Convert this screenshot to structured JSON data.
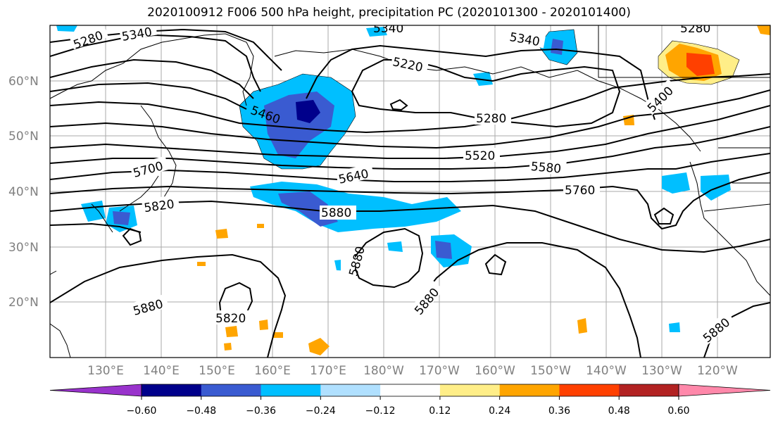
{
  "title": "2020100912 F006 500 hPa height, precipitation PC (2020101300 - 2020101400)",
  "map": {
    "lat_labels": [
      "60°N",
      "50°N",
      "40°N",
      "30°N",
      "20°N"
    ],
    "lon_labels": [
      "130°E",
      "140°E",
      "150°E",
      "160°E",
      "170°E",
      "180°W",
      "170°W",
      "160°W",
      "150°W",
      "140°W",
      "130°W",
      "120°W"
    ],
    "contour_labels": [
      "5280",
      "5340",
      "5340",
      "5340",
      "5280",
      "5220",
      "5400",
      "5460",
      "5280",
      "5520",
      "5580",
      "5640",
      "5700",
      "5760",
      "5820",
      "5880",
      "5880",
      "5880",
      "5820",
      "5880",
      "5880"
    ]
  },
  "colorbar": {
    "colors": [
      "#9933cc",
      "#00008b",
      "#3a5bd1",
      "#00bfff",
      "#b0e0ff",
      "#ffffff",
      "#ffee88",
      "#ffa500",
      "#ff4000",
      "#b22222",
      "#ff88aa"
    ],
    "tick_labels": [
      "−0.60",
      "−0.48",
      "−0.36",
      "−0.24",
      "−0.12",
      "0.12",
      "0.24",
      "0.36",
      "0.48",
      "0.60"
    ]
  }
}
